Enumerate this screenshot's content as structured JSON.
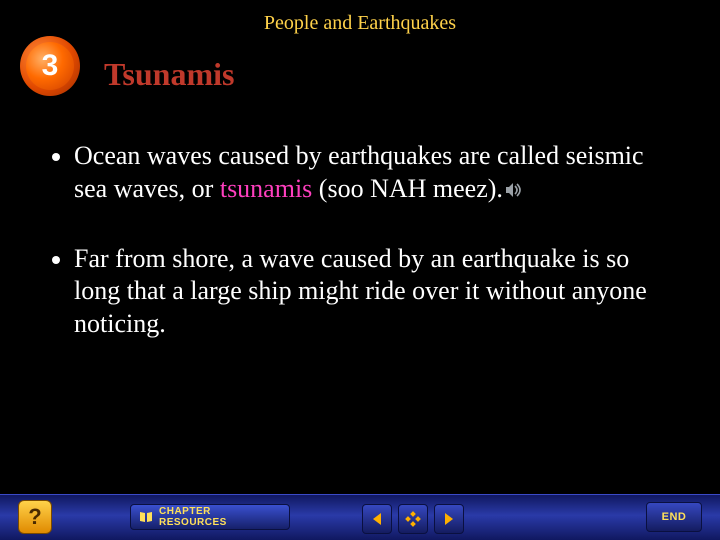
{
  "colors": {
    "background": "#000000",
    "chapter_text": "#ffd24a",
    "title_text": "#c0392b",
    "body_text": "#ffffff",
    "highlight_text": "#ff3fbf",
    "footer_gradient_top": "#101860",
    "footer_gradient_mid": "#2a3aa8",
    "badge_number": "#ffffff",
    "button_label": "#ffe05a",
    "nav_arrow": "#ffb000"
  },
  "header": {
    "chapter_title": "People and Earthquakes",
    "section_number": "3",
    "slide_title": "Tsunamis"
  },
  "bullets": [
    {
      "segments": [
        {
          "text": "Ocean waves caused by earthquakes are called seismic sea waves, or ",
          "style": "normal"
        },
        {
          "text": "tsunamis",
          "style": "highlight"
        },
        {
          "text": " (soo NAH meez).",
          "style": "normal"
        }
      ],
      "has_sound_icon": true
    },
    {
      "segments": [
        {
          "text": "Far from shore, a wave caused by an earthquake is so long that a large ship might ride over it without anyone noticing.",
          "style": "normal"
        }
      ],
      "has_sound_icon": false
    }
  ],
  "footer": {
    "help_label": "?",
    "resources_label": "CHAPTER RESOURCES",
    "end_label": "END",
    "nav": {
      "prev_icon": "triangle-left",
      "contents_icon": "diamond-grid",
      "next_icon": "triangle-right"
    }
  },
  "typography": {
    "chapter_title_size": 20,
    "slide_title_size": 32,
    "body_size": 26,
    "resources_label_size": 10,
    "end_label_size": 11,
    "badge_number_size": 30
  }
}
